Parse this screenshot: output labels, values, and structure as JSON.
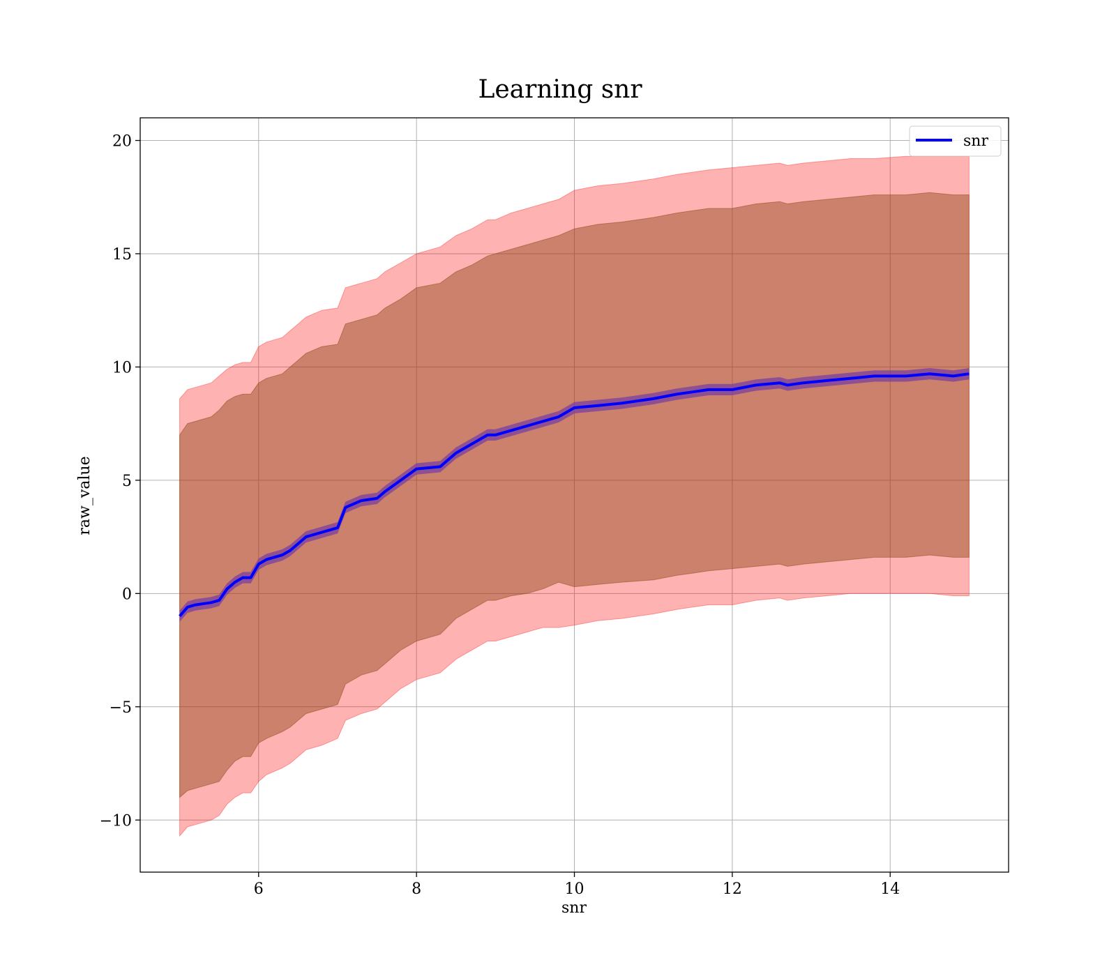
{
  "chart_data": {
    "type": "line",
    "title": "Learning snr",
    "xlabel": "snr",
    "ylabel": "raw_value",
    "xlim": [
      4.5,
      15.5
    ],
    "ylim": [
      -12.3,
      21
    ],
    "x_ticks": [
      6,
      8,
      10,
      12,
      14
    ],
    "y_ticks": [
      -10,
      -5,
      0,
      5,
      10,
      15,
      20
    ],
    "x_tick_labels": [
      "6",
      "8",
      "10",
      "12",
      "14"
    ],
    "y_tick_labels": [
      "−10",
      "−5",
      "0",
      "5",
      "10",
      "15",
      "20"
    ],
    "grid": true,
    "legend": {
      "position": "top-right",
      "entries": [
        "snr"
      ]
    },
    "series": [
      {
        "name": "snr",
        "color": "#0000ff",
        "x": [
          5.0,
          5.1,
          5.2,
          5.4,
          5.5,
          5.6,
          5.7,
          5.8,
          5.9,
          6.0,
          6.1,
          6.3,
          6.4,
          6.5,
          6.6,
          6.8,
          7.0,
          7.1,
          7.3,
          7.5,
          7.6,
          7.8,
          8.0,
          8.3,
          8.5,
          8.7,
          8.9,
          9.0,
          9.2,
          9.4,
          9.6,
          9.8,
          10.0,
          10.3,
          10.6,
          11.0,
          11.3,
          11.5,
          11.7,
          12.0,
          12.3,
          12.6,
          12.7,
          12.9,
          13.2,
          13.5,
          13.8,
          14.2,
          14.5,
          14.8,
          15.0
        ],
        "values": [
          -1.0,
          -0.6,
          -0.5,
          -0.4,
          -0.3,
          0.2,
          0.5,
          0.7,
          0.7,
          1.3,
          1.5,
          1.7,
          1.9,
          2.2,
          2.5,
          2.7,
          2.9,
          3.8,
          4.1,
          4.2,
          4.5,
          5.0,
          5.5,
          5.6,
          6.2,
          6.6,
          7.0,
          7.0,
          7.2,
          7.4,
          7.6,
          7.8,
          8.2,
          8.3,
          8.4,
          8.6,
          8.8,
          8.9,
          9.0,
          9.0,
          9.2,
          9.3,
          9.2,
          9.3,
          9.4,
          9.5,
          9.6,
          9.6,
          9.7,
          9.6,
          9.7
        ],
        "band_inner": {
          "color": "#8b4513",
          "lower": [
            -9.0,
            -8.7,
            -8.6,
            -8.4,
            -8.3,
            -7.8,
            -7.4,
            -7.2,
            -7.2,
            -6.6,
            -6.4,
            -6.1,
            -5.9,
            -5.6,
            -5.3,
            -5.1,
            -4.9,
            -4.0,
            -3.6,
            -3.4,
            -3.1,
            -2.5,
            -2.1,
            -1.8,
            -1.1,
            -0.7,
            -0.3,
            -0.3,
            -0.1,
            0.0,
            0.2,
            0.5,
            0.3,
            0.4,
            0.5,
            0.6,
            0.8,
            0.9,
            1.0,
            1.1,
            1.2,
            1.3,
            1.2,
            1.3,
            1.4,
            1.5,
            1.6,
            1.6,
            1.7,
            1.6,
            1.6
          ],
          "upper": [
            7.0,
            7.5,
            7.6,
            7.8,
            8.1,
            8.5,
            8.7,
            8.8,
            8.8,
            9.3,
            9.5,
            9.7,
            10.0,
            10.3,
            10.6,
            10.9,
            11.0,
            11.9,
            12.1,
            12.3,
            12.6,
            13.0,
            13.5,
            13.7,
            14.2,
            14.5,
            14.9,
            15.0,
            15.2,
            15.4,
            15.6,
            15.8,
            16.1,
            16.3,
            16.4,
            16.6,
            16.8,
            16.9,
            17.0,
            17.0,
            17.2,
            17.3,
            17.2,
            17.3,
            17.4,
            17.5,
            17.6,
            17.6,
            17.7,
            17.6,
            17.6
          ]
        },
        "band_outer": {
          "color": "#ff0000",
          "lower": [
            -10.7,
            -10.3,
            -10.2,
            -10.0,
            -9.8,
            -9.3,
            -9.0,
            -8.8,
            -8.8,
            -8.3,
            -8.0,
            -7.7,
            -7.5,
            -7.2,
            -6.9,
            -6.7,
            -6.4,
            -5.6,
            -5.3,
            -5.1,
            -4.8,
            -4.2,
            -3.8,
            -3.5,
            -2.9,
            -2.5,
            -2.1,
            -2.1,
            -1.9,
            -1.7,
            -1.5,
            -1.5,
            -1.4,
            -1.2,
            -1.1,
            -0.9,
            -0.7,
            -0.6,
            -0.5,
            -0.5,
            -0.3,
            -0.2,
            -0.3,
            -0.2,
            -0.1,
            0.0,
            0.0,
            0.0,
            0.0,
            -0.1,
            -0.1
          ],
          "upper": [
            8.6,
            9.0,
            9.1,
            9.3,
            9.6,
            9.9,
            10.1,
            10.2,
            10.2,
            10.9,
            11.1,
            11.3,
            11.6,
            11.9,
            12.2,
            12.5,
            12.6,
            13.5,
            13.7,
            13.9,
            14.2,
            14.6,
            15.0,
            15.3,
            15.8,
            16.1,
            16.5,
            16.5,
            16.8,
            17.0,
            17.2,
            17.4,
            17.8,
            18.0,
            18.1,
            18.3,
            18.5,
            18.6,
            18.7,
            18.8,
            18.9,
            19.0,
            18.9,
            19.0,
            19.1,
            19.2,
            19.2,
            19.3,
            19.3,
            19.3,
            19.3
          ]
        },
        "band_line": {
          "color": "#7b3fa0",
          "half_width": 0.25
        }
      }
    ]
  }
}
